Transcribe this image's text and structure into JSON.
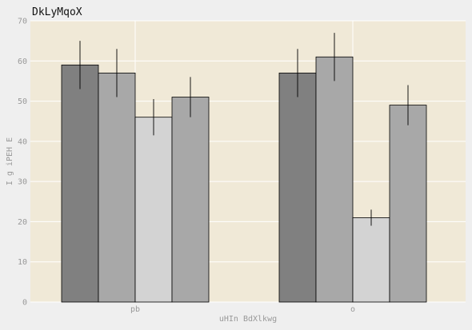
{
  "chart_data": {
    "type": "bar",
    "title": "DkLyMqoX",
    "xlabel": "uHIn BdXlkwg",
    "ylabel": "I g iPEH   E",
    "categories": [
      "pb",
      "o"
    ],
    "ylim": [
      0,
      70
    ],
    "yticks": [
      0,
      10,
      20,
      30,
      40,
      50,
      60,
      70
    ],
    "grid": true,
    "series": [
      {
        "color": "#808080",
        "values": [
          59,
          57
        ],
        "errors": [
          6,
          6
        ]
      },
      {
        "color": "#a8a8a8",
        "values": [
          57,
          61
        ],
        "errors": [
          6,
          6
        ]
      },
      {
        "color": "#d3d3d3",
        "values": [
          46,
          21
        ],
        "errors": [
          4.5,
          2
        ]
      },
      {
        "color": "#a8a8a8",
        "values": [
          51,
          49
        ],
        "errors": [
          5,
          5
        ]
      }
    ],
    "colors": {
      "plot_background": "#f0e9d7",
      "page_background": "#efefef",
      "grid": "#ffffff",
      "bar_edge": "#000000",
      "error_bar": "#000000"
    }
  }
}
